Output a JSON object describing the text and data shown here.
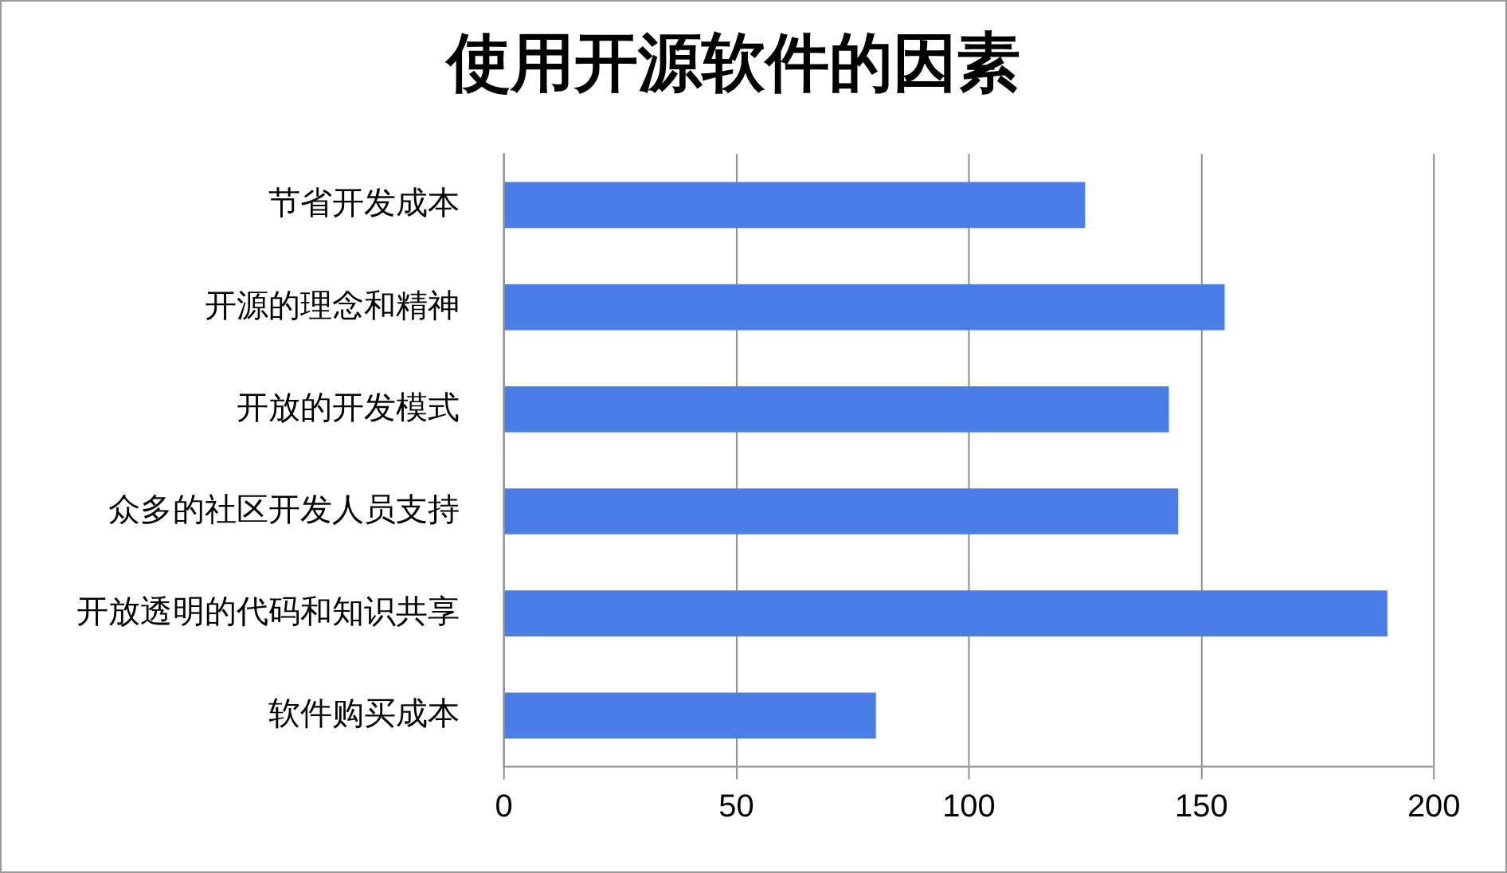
{
  "chart_data": {
    "type": "bar",
    "orientation": "horizontal",
    "title": "使用开源软件的因素",
    "categories": [
      "节省开发成本",
      "开源的理念和精神",
      "开放的开发模式",
      "众多的社区开发人员支持",
      "开放透明的代码和知识共享",
      "软件购买成本"
    ],
    "values": [
      125,
      155,
      143,
      145,
      190,
      80
    ],
    "color": "#4a7ee6",
    "xlim": [
      0,
      200
    ],
    "xticks": [
      0,
      50,
      100,
      150,
      200
    ],
    "grid": "x",
    "legend": false
  }
}
